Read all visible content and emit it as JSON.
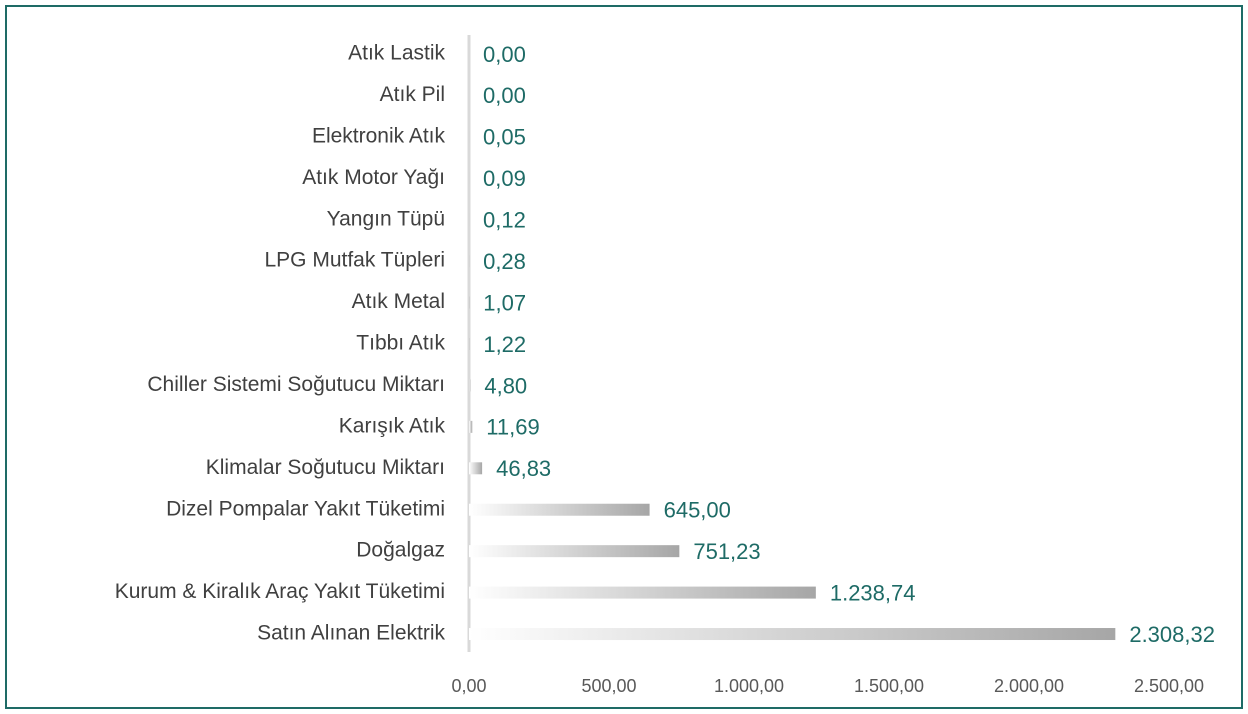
{
  "chart_data": {
    "type": "bar",
    "orientation": "horizontal",
    "categories": [
      "Atık Lastik",
      "Atık Pil",
      "Elektronik Atık",
      "Atık Motor Yağı",
      "Yangın Tüpü",
      "LPG Mutfak Tüpleri",
      "Atık Metal",
      "Tıbbı Atık",
      "Chiller Sistemi Soğutucu Miktarı",
      "Karışık Atık",
      "Klimalar Soğutucu Miktarı",
      "Dizel Pompalar Yakıt Tüketimi",
      "Doğalgaz",
      "Kurum & Kiralık Araç Yakıt Tüketimi",
      "Satın Alınan Elektrik"
    ],
    "values": [
      0.0,
      0.0,
      0.05,
      0.09,
      0.12,
      0.28,
      1.07,
      1.22,
      4.8,
      11.69,
      46.83,
      645.0,
      751.23,
      1238.74,
      2308.32
    ],
    "value_labels": [
      "0,00",
      "0,00",
      "0,05",
      "0,09",
      "0,12",
      "0,28",
      "1,07",
      "1,22",
      "4,80",
      "11,69",
      "46,83",
      "645,00",
      "751,23",
      "1.238,74",
      "2.308,32"
    ],
    "color": "#a6a6a6",
    "xlim": [
      0,
      2500
    ],
    "xticks": [
      {
        "value": 0,
        "label": "0,00"
      },
      {
        "value": 500,
        "label": "500,00"
      },
      {
        "value": 1000,
        "label": "1.000,00"
      },
      {
        "value": 1500,
        "label": "1.500,00"
      },
      {
        "value": 2000,
        "label": "2.000,00"
      },
      {
        "value": 2500,
        "label": "2.500,00"
      }
    ],
    "grid": false
  }
}
